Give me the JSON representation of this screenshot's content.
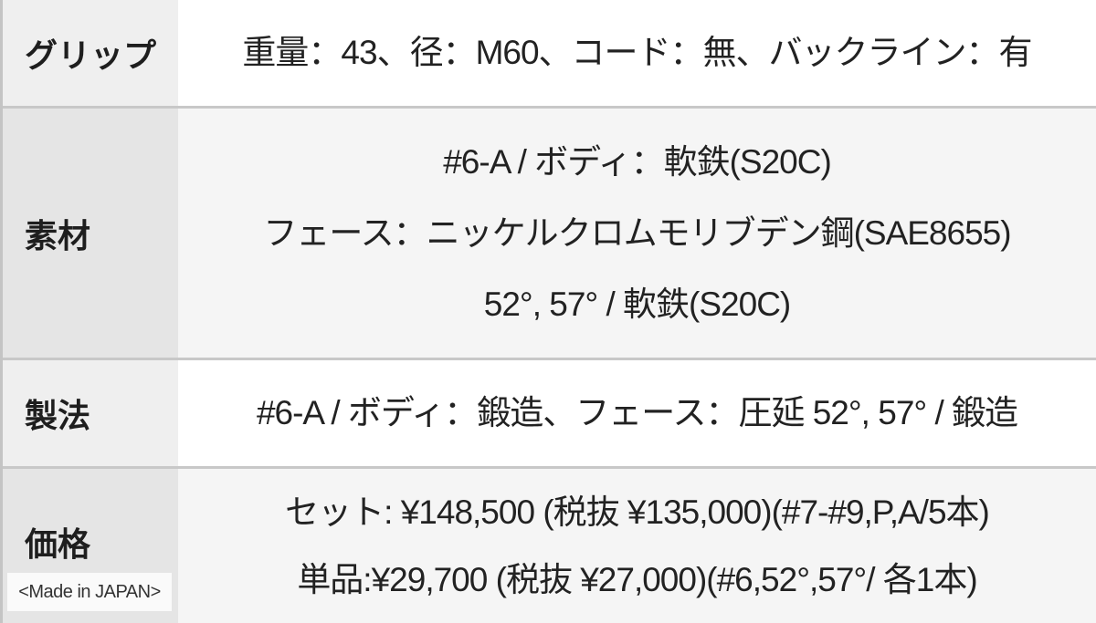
{
  "rows": [
    {
      "label": "グリップ",
      "lines": [
        "重量：43、径：M60、コード：無、バックライン：有"
      ]
    },
    {
      "label": "素材",
      "lines": [
        "#6-A / ボディ：軟鉄(S20C)",
        "フェース：ニッケルクロムモリブデン鋼(SAE8655)",
        "52°, 57° / 軟鉄(S20C)"
      ]
    },
    {
      "label": "製法",
      "lines": [
        "#6-A / ボディ：鍛造、フェース：圧延 52°, 57° / 鍛造"
      ]
    },
    {
      "label": "価格",
      "lines": [
        "セット: ¥148,500 (税抜 ¥135,000)(#7-#9,P,A/5本)",
        "単品:¥29,700 (税抜 ¥27,000)(#6,52°,57°/ 各1本)"
      ]
    }
  ],
  "made_in": "<Made in JAPAN>"
}
